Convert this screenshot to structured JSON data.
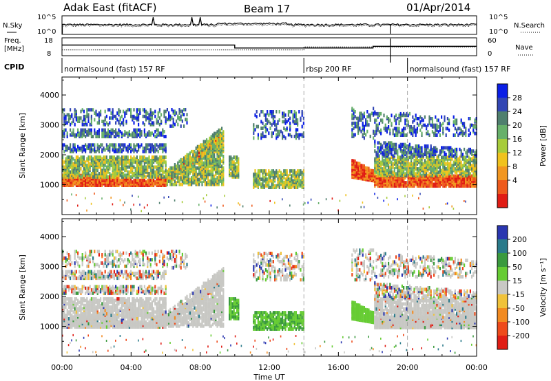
{
  "header": {
    "station": "Adak East (fitACF)",
    "beam": "Beam 17",
    "date": "01/Apr/2014"
  },
  "noise_panel": {
    "left_label": "N.Sky",
    "right_label": "N.Search",
    "left_ticks": [
      "10^5",
      "10^0"
    ],
    "right_ticks": [
      "10^5",
      "10^0"
    ]
  },
  "freq_panel": {
    "left_label_1": "Freq.",
    "left_label_2": "[MHz]",
    "left_ticks": [
      "18",
      "8"
    ],
    "right_label": "Nave",
    "right_ticks": [
      "60",
      "0"
    ],
    "freq_steps": [
      [
        0,
        16.6
      ],
      [
        10.0,
        16.6
      ],
      [
        10.0,
        14.2
      ],
      [
        18.0,
        14.2
      ],
      [
        18.0,
        15.6
      ],
      [
        24.0,
        15.6
      ]
    ],
    "nave_steps": [
      [
        0,
        23
      ],
      [
        14.0,
        23
      ],
      [
        14.0,
        35
      ],
      [
        24.0,
        35
      ]
    ]
  },
  "cpid": {
    "label": "CPID",
    "segments": [
      {
        "start": 0,
        "end": 14.0,
        "text": "normalsound (fast) 157 RF"
      },
      {
        "start": 14.0,
        "end": 20.0,
        "text": "rbsp 200 RF"
      },
      {
        "start": 20.0,
        "end": 24.0,
        "text": "normalsound (fast) 157 RF"
      }
    ]
  },
  "x_axis": {
    "label": "Time UT",
    "ticks": [
      "00:00",
      "04:00",
      "08:00",
      "12:00",
      "16:00",
      "20:00",
      "00:00"
    ],
    "range_hours": [
      0,
      24
    ]
  },
  "chart_data": [
    {
      "type": "heatmap",
      "name": "power",
      "ylabel": "Slant Range [km]",
      "yticks": [
        1000,
        2000,
        3000,
        4000
      ],
      "ylim": [
        0,
        4600
      ],
      "colorbar_label": "Power [dB]",
      "colorbar_ticks": [
        "28",
        "24",
        "20",
        "16",
        "12",
        "8",
        "4"
      ],
      "colors": [
        "#0a1ee6",
        "#3246b4",
        "#4f7f6e",
        "#67b06a",
        "#a7cc3a",
        "#f0c21d",
        "#f29620",
        "#ee5a1c",
        "#e01c14"
      ]
    },
    {
      "type": "heatmap",
      "name": "velocity",
      "ylabel": "Slant Range [km]",
      "yticks": [
        1000,
        2000,
        3000,
        4000
      ],
      "ylim": [
        0,
        4600
      ],
      "colorbar_label": "Velocity [m s⁻¹]",
      "colorbar_ticks": [
        "200",
        "100",
        "50",
        "15",
        "-15",
        "-50",
        "-100",
        "-200"
      ],
      "colors": [
        "#2a36b0",
        "#2a7a8a",
        "#3a9a3e",
        "#66cc33",
        "#c8c8c4",
        "#f0c23a",
        "#f28a20",
        "#ee4a1a",
        "#e01c14"
      ]
    }
  ]
}
